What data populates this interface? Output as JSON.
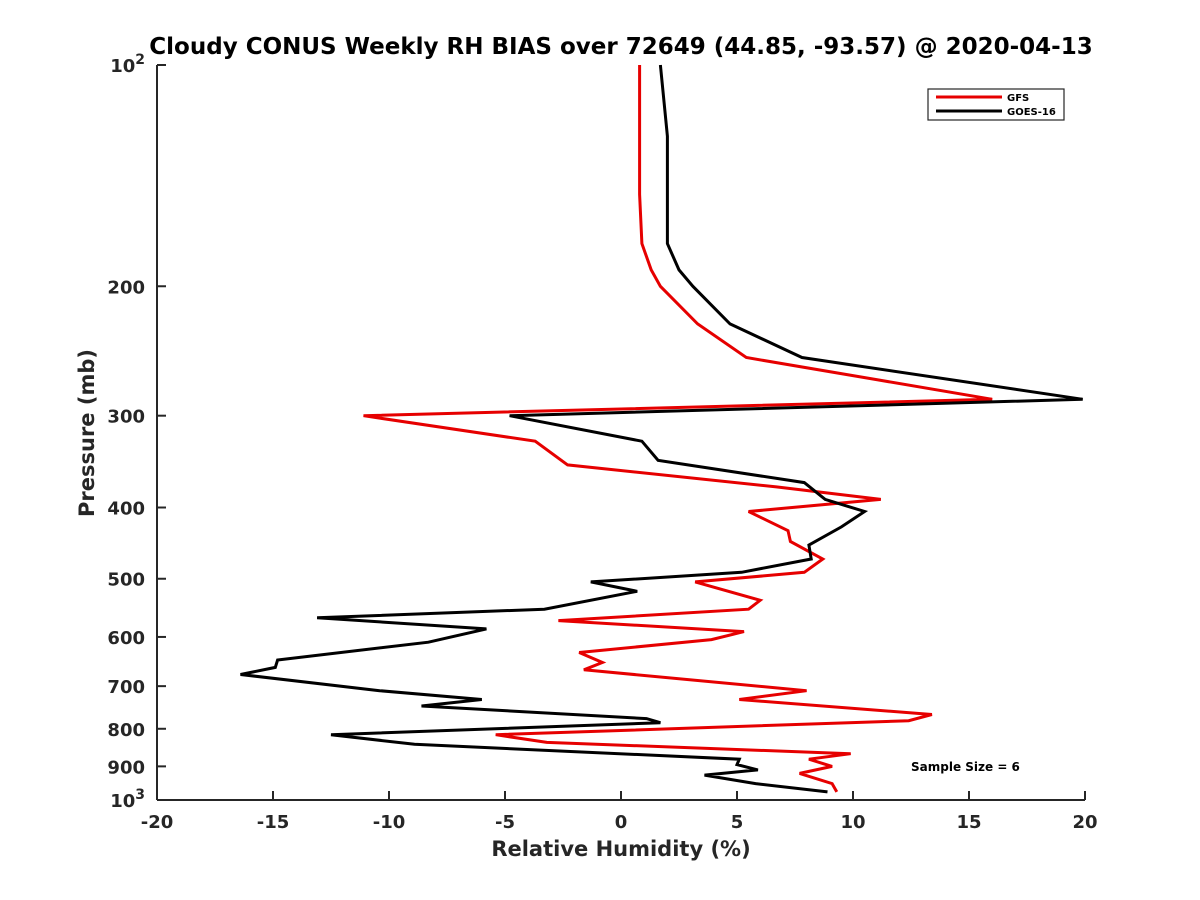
{
  "chart_data": {
    "type": "line",
    "title": "Cloudy CONUS Weekly RH BIAS over 72649 (44.85, -93.57) @ 2020-04-13",
    "xlabel": "Relative Humidity (%)",
    "ylabel": "Pressure (mb)",
    "xlim": [
      -20,
      20
    ],
    "ylim": [
      100,
      1000
    ],
    "y_scale": "log",
    "y_reversed": true,
    "x_ticks": [
      "-20",
      "-15",
      "-10",
      "-5",
      "0",
      "5",
      "10",
      "15",
      "20"
    ],
    "y_ticks": [
      {
        "value": 100,
        "base": "10",
        "exp": "2"
      },
      {
        "value": 200,
        "label": "200"
      },
      {
        "value": 300,
        "label": "300"
      },
      {
        "value": 400,
        "label": "400"
      },
      {
        "value": 500,
        "label": "500"
      },
      {
        "value": 600,
        "label": "600"
      },
      {
        "value": 700,
        "label": "700"
      },
      {
        "value": 800,
        "label": "800"
      },
      {
        "value": 900,
        "label": "900"
      },
      {
        "value": 1000,
        "base": "10",
        "exp": "3"
      }
    ],
    "grid": false,
    "legend_position": "top-right",
    "annotation": "Sample Size = 6",
    "series": [
      {
        "name": "GFS",
        "color": "#e60000",
        "points": [
          [
            0.8,
            100
          ],
          [
            0.8,
            125
          ],
          [
            0.8,
            150
          ],
          [
            0.9,
            175
          ],
          [
            1.3,
            190
          ],
          [
            1.7,
            200
          ],
          [
            3.3,
            225
          ],
          [
            5.4,
            250
          ],
          [
            16.0,
            285
          ],
          [
            -11.1,
            300
          ],
          [
            -3.7,
            325
          ],
          [
            -2.3,
            350
          ],
          [
            6.7,
            375
          ],
          [
            11.2,
            390
          ],
          [
            5.5,
            405
          ],
          [
            7.2,
            430
          ],
          [
            7.3,
            445
          ],
          [
            8.7,
            470
          ],
          [
            7.9,
            490
          ],
          [
            3.2,
            505
          ],
          [
            6.0,
            535
          ],
          [
            5.5,
            550
          ],
          [
            -2.7,
            570
          ],
          [
            5.3,
            590
          ],
          [
            3.9,
            605
          ],
          [
            -1.8,
            630
          ],
          [
            -0.8,
            650
          ],
          [
            -1.6,
            665
          ],
          [
            8.0,
            710
          ],
          [
            5.1,
            730
          ],
          [
            13.4,
            765
          ],
          [
            12.4,
            780
          ],
          [
            -5.4,
            815
          ],
          [
            -3.2,
            835
          ],
          [
            9.9,
            865
          ],
          [
            8.1,
            880
          ],
          [
            9.1,
            900
          ],
          [
            7.7,
            920
          ],
          [
            9.1,
            950
          ],
          [
            9.3,
            975
          ]
        ]
      },
      {
        "name": "GOES-16",
        "color": "#000000",
        "points": [
          [
            1.7,
            100
          ],
          [
            2.0,
            125
          ],
          [
            2.0,
            150
          ],
          [
            2.0,
            175
          ],
          [
            2.5,
            190
          ],
          [
            3.1,
            200
          ],
          [
            4.7,
            225
          ],
          [
            7.8,
            250
          ],
          [
            19.9,
            285
          ],
          [
            -4.8,
            300
          ],
          [
            0.9,
            325
          ],
          [
            1.6,
            345
          ],
          [
            7.9,
            370
          ],
          [
            8.8,
            390
          ],
          [
            10.5,
            405
          ],
          [
            9.5,
            425
          ],
          [
            8.1,
            450
          ],
          [
            8.2,
            470
          ],
          [
            5.2,
            490
          ],
          [
            -1.3,
            505
          ],
          [
            0.7,
            520
          ],
          [
            -3.3,
            550
          ],
          [
            -13.1,
            565
          ],
          [
            -5.8,
            585
          ],
          [
            -8.3,
            610
          ],
          [
            -14.8,
            645
          ],
          [
            -14.9,
            660
          ],
          [
            -16.4,
            675
          ],
          [
            -10.4,
            710
          ],
          [
            -6.0,
            730
          ],
          [
            -8.6,
            745
          ],
          [
            1.1,
            775
          ],
          [
            1.7,
            785
          ],
          [
            -12.5,
            815
          ],
          [
            -8.9,
            840
          ],
          [
            5.1,
            880
          ],
          [
            5.0,
            895
          ],
          [
            5.9,
            910
          ],
          [
            3.6,
            925
          ],
          [
            5.8,
            950
          ],
          [
            8.9,
            975
          ]
        ]
      }
    ]
  }
}
